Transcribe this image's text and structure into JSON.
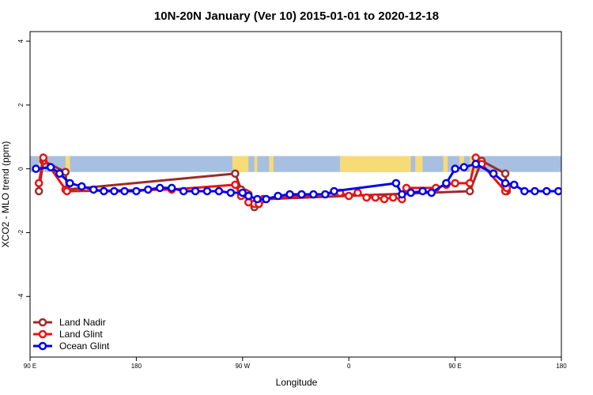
{
  "chart_data": {
    "type": "line",
    "title": "10N-20N January (Ver 10)   2015-01-01 to 2020-12-18",
    "xlabel": "Longitude",
    "ylabel": "XCO2 - MLO trend (ppm)",
    "xlim": [
      90,
      450
    ],
    "ylim": [
      -5.9,
      4.3
    ],
    "x_ticks": [
      {
        "value": 90,
        "label": "90 E"
      },
      {
        "value": 162,
        "label": "180"
      },
      {
        "value": 234,
        "label": "90 W"
      },
      {
        "value": 306,
        "label": "0"
      },
      {
        "value": 378,
        "label": "90 E"
      },
      {
        "value": 450,
        "label": "180"
      }
    ],
    "y_ticks": [
      {
        "value": 4,
        "label": "4"
      },
      {
        "value": 2,
        "label": "2"
      },
      {
        "value": 0,
        "label": "0"
      },
      {
        "value": -2,
        "label": "-2"
      },
      {
        "value": -4,
        "label": "-4"
      }
    ],
    "map_band": {
      "ymin": -0.1,
      "ymax": 0.4,
      "ocean_color": "#a7bfe0",
      "land_color": "#f7db77"
    },
    "land_regions": [
      {
        "x0": 96,
        "x1": 100
      },
      {
        "x0": 114,
        "x1": 117
      },
      {
        "x0": 227,
        "x1": 238
      },
      {
        "x0": 242,
        "x1": 244
      },
      {
        "x0": 252,
        "x1": 255
      },
      {
        "x0": 300,
        "x1": 348
      },
      {
        "x0": 351,
        "x1": 356
      },
      {
        "x0": 370,
        "x1": 373
      },
      {
        "x0": 381,
        "x1": 384
      },
      {
        "x0": 388,
        "x1": 392
      }
    ],
    "series": [
      {
        "name": "Land Nadir",
        "color": "#9e2a2a",
        "x": [
          96,
          99,
          114,
          115,
          229,
          233,
          236,
          238,
          242,
          245,
          248,
          388,
          396,
          412,
          413
        ],
        "y": [
          -0.7,
          0.25,
          -0.1,
          -0.65,
          -0.15,
          -0.65,
          -0.8,
          -0.8,
          -1.2,
          -1.1,
          -0.95,
          -0.7,
          0.25,
          -0.15,
          -0.7
        ]
      },
      {
        "name": "Land Glint",
        "color": "#ee1111",
        "x": [
          96,
          99,
          114,
          115,
          186,
          229,
          233,
          236,
          238,
          242,
          245,
          248,
          300,
          306,
          312,
          318,
          324,
          330,
          336,
          342,
          345,
          365,
          372,
          378,
          388,
          392,
          396,
          412,
          413
        ],
        "y": [
          -0.45,
          0.35,
          -0.65,
          -0.7,
          -0.65,
          -0.5,
          -0.85,
          -0.75,
          -1.05,
          -1.1,
          -1.1,
          -0.95,
          -0.75,
          -0.85,
          -0.75,
          -0.9,
          -0.9,
          -0.95,
          -0.9,
          -0.95,
          -0.6,
          -0.6,
          -0.5,
          -0.45,
          -0.45,
          0.35,
          0.15,
          -0.7,
          -0.6
        ]
      },
      {
        "name": "Ocean Glint",
        "color": "#0000ee",
        "x": [
          94,
          104,
          110,
          117,
          125,
          133,
          140,
          147,
          154,
          162,
          170,
          178,
          186,
          194,
          202,
          210,
          218,
          226,
          234,
          238,
          244,
          250,
          258,
          266,
          274,
          282,
          290,
          296,
          338,
          342,
          348,
          356,
          362,
          372,
          378,
          384,
          392,
          404,
          412,
          418,
          425,
          432,
          440,
          448
        ],
        "y": [
          0.0,
          0.05,
          -0.15,
          -0.45,
          -0.55,
          -0.65,
          -0.7,
          -0.7,
          -0.7,
          -0.7,
          -0.65,
          -0.6,
          -0.6,
          -0.7,
          -0.7,
          -0.7,
          -0.7,
          -0.75,
          -0.75,
          -0.85,
          -0.95,
          -0.95,
          -0.85,
          -0.8,
          -0.8,
          -0.8,
          -0.8,
          -0.7,
          -0.45,
          -0.8,
          -0.75,
          -0.7,
          -0.75,
          -0.45,
          0.0,
          0.05,
          0.15,
          -0.15,
          -0.45,
          -0.5,
          -0.7,
          -0.7,
          -0.7,
          -0.7
        ]
      }
    ],
    "legend_position": "bottom-left"
  }
}
